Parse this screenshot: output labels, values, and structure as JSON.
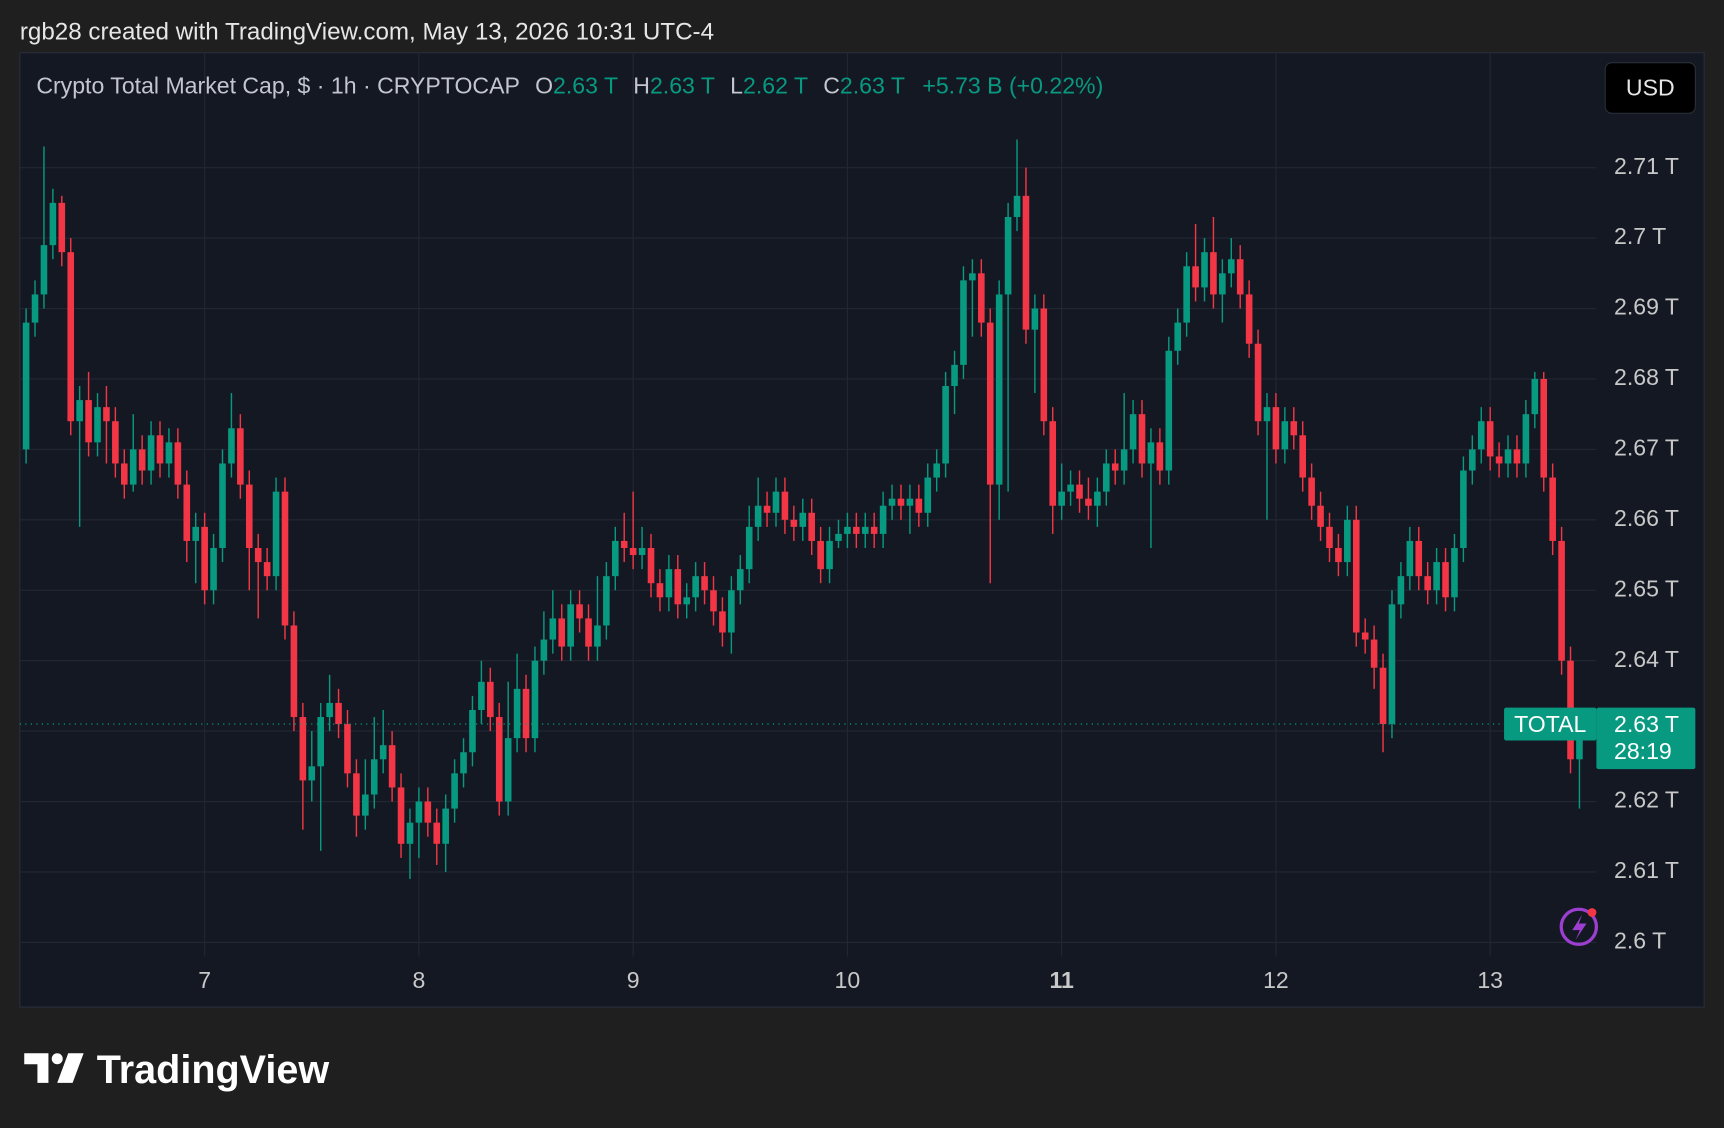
{
  "header": {
    "credit": "rgb28 created with TradingView.com, May 13, 2026 10:31 UTC-4"
  },
  "brand": "TradingView",
  "chart_data": {
    "type": "candlestick",
    "legend_title": "Crypto Total Market Cap, $ · 1h · CRYPTOCAP",
    "ohlc_legend": [
      {
        "key": "O",
        "value": "2.63 T"
      },
      {
        "key": "H",
        "value": "2.63 T"
      },
      {
        "key": "L",
        "value": "2.62 T"
      },
      {
        "key": "C",
        "value": "2.63 T"
      }
    ],
    "change": "+5.73 B (+0.22%)",
    "currency": "USD",
    "symbol_label": "TOTAL",
    "price_label": "2.63 T",
    "countdown": "28:19",
    "up_color": "#089981",
    "down_color": "#f23645",
    "grid": true,
    "xlim": [
      -0.7,
      175.9
    ],
    "xticks": [
      {
        "value": 20,
        "label": "7"
      },
      {
        "value": 44,
        "label": "8"
      },
      {
        "value": 68,
        "label": "9"
      },
      {
        "value": 92,
        "label": "10"
      },
      {
        "value": 116,
        "label": "11"
      },
      {
        "value": 140,
        "label": "12"
      },
      {
        "value": 164,
        "label": "13"
      }
    ],
    "ylim": [
      2.598,
      2.726
    ],
    "yticks": [
      {
        "value": 2.71,
        "label": "2.71 T"
      },
      {
        "value": 2.7,
        "label": "2.7 T"
      },
      {
        "value": 2.69,
        "label": "2.69 T"
      },
      {
        "value": 2.68,
        "label": "2.68 T"
      },
      {
        "value": 2.67,
        "label": "2.67 T"
      },
      {
        "value": 2.66,
        "label": "2.66 T"
      },
      {
        "value": 2.65,
        "label": "2.65 T"
      },
      {
        "value": 2.64,
        "label": "2.64 T"
      },
      {
        "value": 2.63,
        "label": "2.63 T"
      },
      {
        "value": 2.62,
        "label": "2.62 T"
      },
      {
        "value": 2.61,
        "label": "2.61 T"
      },
      {
        "value": 2.6,
        "label": "2.6 T"
      }
    ],
    "open": [
      2.67,
      2.688,
      2.692,
      2.699,
      2.705,
      2.698,
      2.674,
      2.677,
      2.671,
      2.676,
      2.674,
      2.668,
      2.665,
      2.67,
      2.667,
      2.672,
      2.668,
      2.671,
      2.665,
      2.657,
      2.659,
      2.65,
      2.656,
      2.668,
      2.673,
      2.665,
      2.656,
      2.654,
      2.652,
      2.664,
      2.645,
      2.632,
      2.623,
      2.625,
      2.632,
      2.634,
      2.631,
      2.624,
      2.618,
      2.621,
      2.626,
      2.628,
      2.622,
      2.614,
      2.617,
      2.62,
      2.617,
      2.614,
      2.619,
      2.624,
      2.627,
      2.633,
      2.637,
      2.632,
      2.62,
      2.629,
      2.636,
      2.629,
      2.64,
      2.643,
      2.646,
      2.642,
      2.648,
      2.646,
      2.642,
      2.645,
      2.652,
      2.657,
      2.656,
      2.655,
      2.656,
      2.651,
      2.649,
      2.653,
      2.648,
      2.649,
      2.652,
      2.65,
      2.647,
      2.644,
      2.65,
      2.653,
      2.659,
      2.662,
      2.661,
      2.664,
      2.66,
      2.659,
      2.661,
      2.657,
      2.653,
      2.657,
      2.658,
      2.659,
      2.658,
      2.659,
      2.658,
      2.662,
      2.663,
      2.662,
      2.663,
      2.661,
      2.666,
      2.668,
      2.679,
      2.682,
      2.694,
      2.695,
      2.688,
      2.665,
      2.692,
      2.703,
      2.706,
      2.687,
      2.69,
      2.674,
      2.662,
      2.664,
      2.665,
      2.663,
      2.662,
      2.664,
      2.668,
      2.667,
      2.67,
      2.675,
      2.668,
      2.671,
      2.667,
      2.684,
      2.688,
      2.696,
      2.693,
      2.698,
      2.692,
      2.695,
      2.697,
      2.692,
      2.685,
      2.674,
      2.676,
      2.67,
      2.674,
      2.672,
      2.666,
      2.662,
      2.659,
      2.656,
      2.654,
      2.66,
      2.644,
      2.643,
      2.639,
      2.631,
      2.648,
      2.652,
      2.657,
      2.652,
      2.65,
      2.654,
      2.649,
      2.656,
      2.667,
      2.67,
      2.674,
      2.669,
      2.668,
      2.67,
      2.668,
      2.675,
      2.68,
      2.666,
      2.657,
      2.64,
      2.626
    ],
    "high": [
      2.69,
      2.694,
      2.713,
      2.707,
      2.706,
      2.7,
      2.679,
      2.681,
      2.678,
      2.679,
      2.676,
      2.67,
      2.675,
      2.672,
      2.674,
      2.674,
      2.673,
      2.673,
      2.667,
      2.661,
      2.661,
      2.658,
      2.67,
      2.678,
      2.675,
      2.667,
      2.658,
      2.656,
      2.666,
      2.666,
      2.647,
      2.634,
      2.63,
      2.634,
      2.638,
      2.636,
      2.633,
      2.626,
      2.626,
      2.632,
      2.633,
      2.63,
      2.624,
      2.619,
      2.622,
      2.622,
      2.619,
      2.621,
      2.626,
      2.629,
      2.635,
      2.64,
      2.639,
      2.634,
      2.637,
      2.641,
      2.638,
      2.642,
      2.647,
      2.65,
      2.648,
      2.65,
      2.65,
      2.648,
      2.652,
      2.654,
      2.659,
      2.661,
      2.664,
      2.659,
      2.658,
      2.653,
      2.655,
      2.655,
      2.651,
      2.654,
      2.654,
      2.652,
      2.649,
      2.652,
      2.655,
      2.662,
      2.666,
      2.664,
      2.666,
      2.666,
      2.662,
      2.663,
      2.663,
      2.659,
      2.659,
      2.66,
      2.661,
      2.661,
      2.661,
      2.661,
      2.664,
      2.665,
      2.665,
      2.665,
      2.665,
      2.668,
      2.67,
      2.681,
      2.684,
      2.696,
      2.697,
      2.697,
      2.69,
      2.694,
      2.705,
      2.714,
      2.71,
      2.692,
      2.692,
      2.676,
      2.668,
      2.667,
      2.667,
      2.666,
      2.666,
      2.67,
      2.67,
      2.678,
      2.677,
      2.677,
      2.673,
      2.673,
      2.686,
      2.69,
      2.698,
      2.702,
      2.7,
      2.703,
      2.697,
      2.7,
      2.699,
      2.694,
      2.687,
      2.678,
      2.678,
      2.676,
      2.676,
      2.674,
      2.668,
      2.664,
      2.661,
      2.658,
      2.662,
      2.662,
      2.646,
      2.645,
      2.641,
      2.65,
      2.654,
      2.659,
      2.659,
      2.654,
      2.656,
      2.656,
      2.658,
      2.669,
      2.672,
      2.676,
      2.676,
      2.671,
      2.672,
      2.672,
      2.677,
      2.681,
      2.681,
      2.668,
      2.659,
      2.642,
      2.633
    ],
    "low": [
      2.668,
      2.686,
      2.69,
      2.697,
      2.696,
      2.672,
      2.659,
      2.669,
      2.669,
      2.668,
      2.666,
      2.663,
      2.664,
      2.665,
      2.665,
      2.666,
      2.666,
      2.663,
      2.654,
      2.651,
      2.648,
      2.648,
      2.654,
      2.666,
      2.663,
      2.65,
      2.646,
      2.65,
      2.65,
      2.643,
      2.63,
      2.616,
      2.62,
      2.613,
      2.63,
      2.629,
      2.622,
      2.615,
      2.616,
      2.619,
      2.624,
      2.62,
      2.612,
      2.609,
      2.612,
      2.615,
      2.611,
      2.61,
      2.617,
      2.622,
      2.625,
      2.631,
      2.63,
      2.618,
      2.618,
      2.627,
      2.627,
      2.627,
      2.638,
      2.641,
      2.64,
      2.64,
      2.644,
      2.64,
      2.64,
      2.643,
      2.65,
      2.654,
      2.653,
      2.653,
      2.649,
      2.647,
      2.647,
      2.646,
      2.646,
      2.647,
      2.648,
      2.645,
      2.642,
      2.641,
      2.648,
      2.651,
      2.657,
      2.659,
      2.659,
      2.658,
      2.657,
      2.657,
      2.655,
      2.651,
      2.651,
      2.656,
      2.656,
      2.656,
      2.656,
      2.656,
      2.656,
      2.66,
      2.66,
      2.658,
      2.659,
      2.659,
      2.664,
      2.666,
      2.675,
      2.68,
      2.686,
      2.686,
      2.651,
      2.66,
      2.664,
      2.701,
      2.685,
      2.678,
      2.672,
      2.658,
      2.66,
      2.662,
      2.661,
      2.66,
      2.659,
      2.662,
      2.665,
      2.665,
      2.668,
      2.666,
      2.656,
      2.665,
      2.665,
      2.682,
      2.686,
      2.691,
      2.691,
      2.69,
      2.688,
      2.693,
      2.69,
      2.683,
      2.672,
      2.66,
      2.668,
      2.668,
      2.67,
      2.664,
      2.66,
      2.657,
      2.654,
      2.652,
      2.652,
      2.642,
      2.641,
      2.636,
      2.627,
      2.629,
      2.646,
      2.65,
      2.65,
      2.648,
      2.648,
      2.647,
      2.647,
      2.654,
      2.665,
      2.668,
      2.667,
      2.666,
      2.666,
      2.666,
      2.666,
      2.673,
      2.664,
      2.655,
      2.638,
      2.624,
      2.619
    ],
    "close": [
      2.688,
      2.692,
      2.699,
      2.705,
      2.698,
      2.674,
      2.677,
      2.671,
      2.676,
      2.674,
      2.668,
      2.665,
      2.67,
      2.667,
      2.672,
      2.668,
      2.671,
      2.665,
      2.657,
      2.659,
      2.65,
      2.656,
      2.668,
      2.673,
      2.665,
      2.656,
      2.654,
      2.652,
      2.664,
      2.645,
      2.632,
      2.623,
      2.625,
      2.632,
      2.634,
      2.631,
      2.624,
      2.618,
      2.621,
      2.626,
      2.628,
      2.622,
      2.614,
      2.617,
      2.62,
      2.617,
      2.614,
      2.619,
      2.624,
      2.627,
      2.633,
      2.637,
      2.632,
      2.62,
      2.629,
      2.636,
      2.629,
      2.64,
      2.643,
      2.646,
      2.642,
      2.648,
      2.646,
      2.642,
      2.645,
      2.652,
      2.657,
      2.656,
      2.655,
      2.656,
      2.651,
      2.649,
      2.653,
      2.648,
      2.649,
      2.652,
      2.65,
      2.647,
      2.644,
      2.65,
      2.653,
      2.659,
      2.662,
      2.661,
      2.664,
      2.66,
      2.659,
      2.661,
      2.657,
      2.653,
      2.657,
      2.658,
      2.659,
      2.658,
      2.659,
      2.658,
      2.662,
      2.663,
      2.662,
      2.663,
      2.661,
      2.666,
      2.668,
      2.679,
      2.682,
      2.694,
      2.695,
      2.688,
      2.665,
      2.692,
      2.703,
      2.706,
      2.687,
      2.69,
      2.674,
      2.662,
      2.664,
      2.665,
      2.663,
      2.662,
      2.664,
      2.668,
      2.667,
      2.67,
      2.675,
      2.668,
      2.671,
      2.667,
      2.684,
      2.688,
      2.696,
      2.693,
      2.698,
      2.692,
      2.695,
      2.697,
      2.692,
      2.685,
      2.674,
      2.676,
      2.67,
      2.674,
      2.672,
      2.666,
      2.662,
      2.659,
      2.656,
      2.654,
      2.66,
      2.644,
      2.643,
      2.639,
      2.631,
      2.648,
      2.652,
      2.657,
      2.652,
      2.65,
      2.654,
      2.649,
      2.656,
      2.667,
      2.67,
      2.674,
      2.669,
      2.668,
      2.67,
      2.668,
      2.675,
      2.68,
      2.666,
      2.657,
      2.64,
      2.626,
      2.631
    ]
  }
}
